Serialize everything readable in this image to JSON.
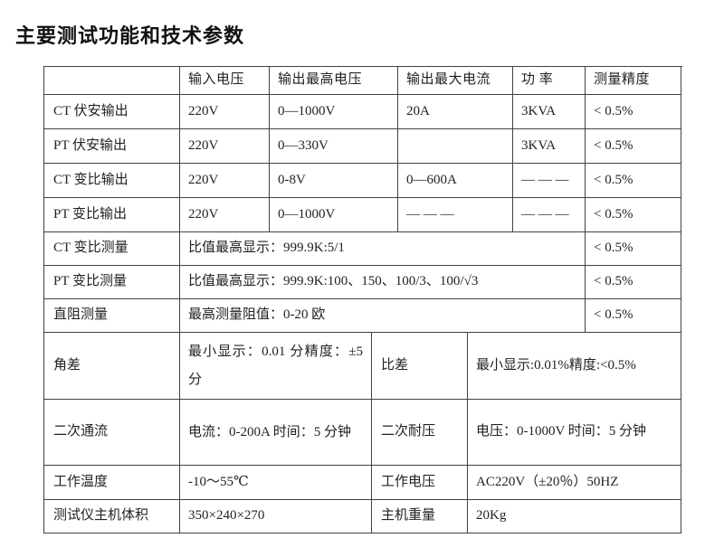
{
  "page": {
    "title": "主要测试功能和技术参数"
  },
  "colors": {
    "background": "#ffffff",
    "text": "#222222",
    "border": "#424242"
  },
  "table": {
    "header": {
      "col0": "",
      "col1": "输入电压",
      "col2": "输出最高电压",
      "col3": "输出最大电流",
      "col4": "功 率",
      "col5": "测量精度"
    },
    "output_rows": [
      {
        "label": "CT 伏安输出",
        "input_voltage": "220V",
        "max_output_voltage": "0—1000V",
        "max_output_current": "20A",
        "power": "3KVA",
        "accuracy": "< 0.5%"
      },
      {
        "label": "PT 伏安输出",
        "input_voltage": "220V",
        "max_output_voltage": "0—330V",
        "max_output_current": "",
        "power": "3KVA",
        "accuracy": "< 0.5%"
      },
      {
        "label": "CT 变比输出",
        "input_voltage": "220V",
        "max_output_voltage": "0-8V",
        "max_output_current": "0—600A",
        "power": "— — —",
        "accuracy": "< 0.5%"
      },
      {
        "label": "PT 变比输出",
        "input_voltage": "220V",
        "max_output_voltage": "0—1000V",
        "max_output_current": "— — —",
        "power": "— — —",
        "accuracy": "< 0.5%"
      }
    ],
    "span_rows": [
      {
        "label": "CT 变比测量",
        "value": "比值最高显示：999.9K:5/1",
        "accuracy": "< 0.5%"
      },
      {
        "label": "PT 变比测量",
        "value": "比值最高显示：999.9K:100、150、100/3、100/√3",
        "accuracy": "< 0.5%"
      },
      {
        "label": "直阻测量",
        "value": "最高测量阻值：0-20 欧",
        "accuracy": "< 0.5%"
      }
    ],
    "pair_rows": [
      {
        "label_left": "角差",
        "value_left": "最小显示：0.01 分精度：±5 分",
        "label_right": "比差",
        "value_right": "最小显示:0.01%精度:<0.5%"
      },
      {
        "label_left": "二次通流",
        "value_left": "电流：0-200A 时间：5 分钟",
        "label_right": "二次耐压",
        "value_right": "电压：0-1000V 时间：5 分钟"
      },
      {
        "label_left": "工作温度",
        "value_left": "-10～55℃",
        "label_right": "工作电压",
        "value_right": "AC220V（±20％）50HZ"
      },
      {
        "label_left": "测试仪主机体积",
        "value_left": "350×240×270",
        "label_right": "主机重量",
        "value_right": "20Kg"
      }
    ]
  }
}
